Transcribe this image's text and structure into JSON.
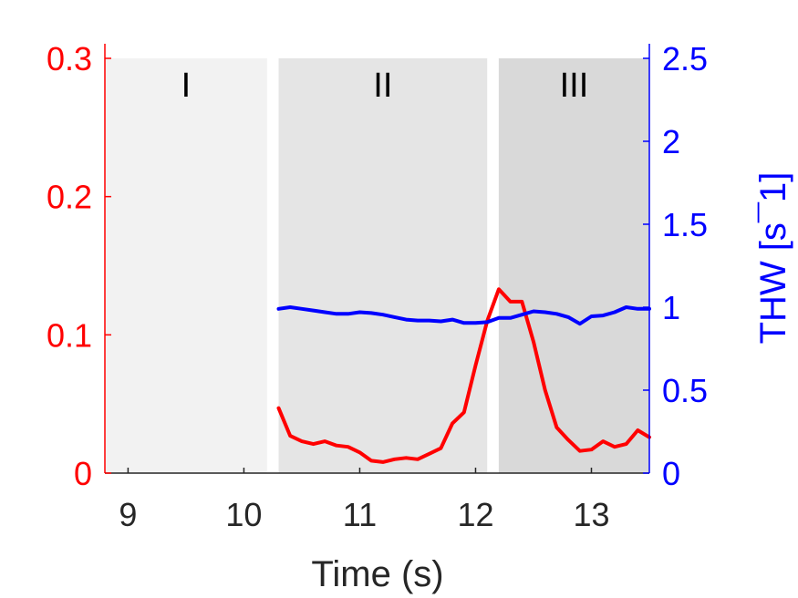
{
  "chart_data": {
    "type": "line",
    "title": "",
    "xlabel": "Time (s)",
    "ylabel_left": "",
    "ylabel_right": "THW [s^-1]",
    "ylabel_right_display": "THW [s¯1]",
    "xlim": [
      8.8,
      13.5
    ],
    "ylim_left": [
      0,
      0.3
    ],
    "ylim_right": [
      0,
      2.5
    ],
    "xticks": [
      {
        "value": 9,
        "label": "9"
      },
      {
        "value": 10,
        "label": "10"
      },
      {
        "value": 11,
        "label": "11"
      },
      {
        "value": 12,
        "label": "12"
      },
      {
        "value": 13,
        "label": "13"
      }
    ],
    "yticks_left": [
      {
        "value": 0,
        "label": "0"
      },
      {
        "value": 0.1,
        "label": "0.1"
      },
      {
        "value": 0.2,
        "label": "0.2"
      },
      {
        "value": 0.3,
        "label": "0.3"
      }
    ],
    "yticks_right": [
      {
        "value": 0,
        "label": "0"
      },
      {
        "value": 0.5,
        "label": "0.5"
      },
      {
        "value": 1,
        "label": "1"
      },
      {
        "value": 1.5,
        "label": "1.5"
      },
      {
        "value": 2,
        "label": "2"
      },
      {
        "value": 2.5,
        "label": "2.5"
      }
    ],
    "grid": false,
    "regions": [
      {
        "label": "I",
        "x0": 8.8,
        "x1": 10.2,
        "color": "#f2f2f2"
      },
      {
        "label": "II",
        "x0": 10.3,
        "x1": 12.1,
        "color": "#e5e5e5"
      },
      {
        "label": "III",
        "x0": 12.2,
        "x1": 13.5,
        "color": "#d9d9d9"
      }
    ],
    "series": [
      {
        "axis": "left",
        "color": "#ff0000",
        "x": [
          10.3,
          10.4,
          10.5,
          10.6,
          10.7,
          10.8,
          10.9,
          11.0,
          11.1,
          11.2,
          11.3,
          11.4,
          11.5,
          11.6,
          11.7,
          11.8,
          11.9,
          12.0,
          12.1,
          12.2,
          12.3,
          12.4,
          12.5,
          12.6,
          12.7,
          12.8,
          12.9,
          13.0,
          13.1,
          13.2,
          13.3,
          13.4,
          13.5
        ],
        "values": [
          0.047,
          0.027,
          0.023,
          0.021,
          0.023,
          0.02,
          0.019,
          0.015,
          0.009,
          0.008,
          0.01,
          0.011,
          0.01,
          0.014,
          0.018,
          0.036,
          0.044,
          0.078,
          0.11,
          0.133,
          0.124,
          0.124,
          0.095,
          0.06,
          0.033,
          0.024,
          0.016,
          0.017,
          0.023,
          0.019,
          0.021,
          0.031,
          0.026
        ]
      },
      {
        "axis": "right",
        "color": "#0000ff",
        "x": [
          10.3,
          10.4,
          10.5,
          10.6,
          10.7,
          10.8,
          10.9,
          11.0,
          11.1,
          11.2,
          11.3,
          11.4,
          11.5,
          11.6,
          11.7,
          11.8,
          11.9,
          12.0,
          12.1,
          12.2,
          12.3,
          12.4,
          12.5,
          12.6,
          12.7,
          12.8,
          12.9,
          13.0,
          13.1,
          13.2,
          13.3,
          13.4,
          13.5
        ],
        "values": [
          0.99,
          1.0,
          0.99,
          0.98,
          0.97,
          0.96,
          0.96,
          0.97,
          0.965,
          0.955,
          0.94,
          0.925,
          0.92,
          0.92,
          0.915,
          0.925,
          0.905,
          0.905,
          0.91,
          0.935,
          0.935,
          0.955,
          0.975,
          0.97,
          0.96,
          0.94,
          0.9,
          0.945,
          0.95,
          0.97,
          1.0,
          0.99,
          0.99
        ]
      }
    ]
  }
}
